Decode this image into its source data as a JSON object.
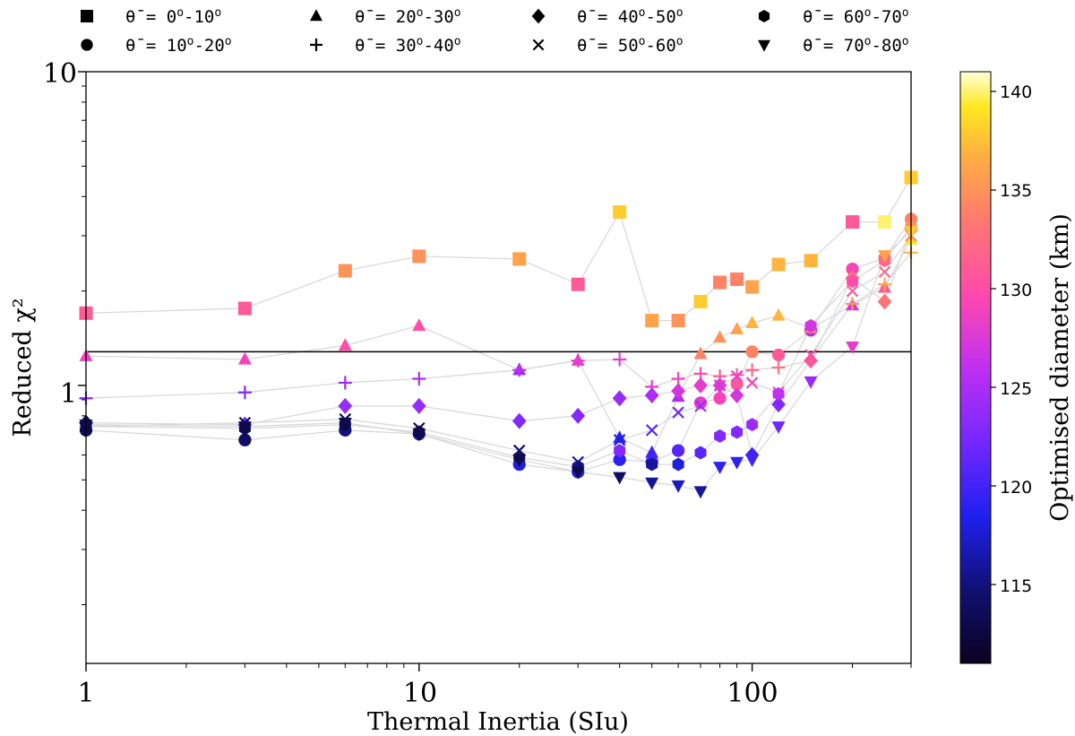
{
  "chart_data": {
    "type": "scatter",
    "title": "",
    "xlabel": "Thermal Inertia (SIu)",
    "ylabel": "Reduced χ²",
    "xscale": "log",
    "yscale": "log",
    "xlim": [
      1,
      300
    ],
    "ylim": [
      0.13,
      10
    ],
    "x_ticks": [
      {
        "value": 1,
        "label": "1"
      },
      {
        "value": 10,
        "label": "10"
      },
      {
        "value": 100,
        "label": "100"
      }
    ],
    "y_ticks": [
      {
        "value": 1,
        "label": "1"
      },
      {
        "value": 10,
        "label": "10"
      }
    ],
    "reference_line": {
      "y": 1.28,
      "color": "#000000"
    },
    "connector_color": "#d9d9d9",
    "legend_position": "top",
    "colorbar": {
      "label": "Optimised diameter (km)",
      "colormap": "plasma-like",
      "range": [
        111,
        141
      ],
      "ticks": [
        115,
        120,
        125,
        130,
        135,
        140
      ]
    },
    "series": [
      {
        "name": "θ̄ = 0ᵒ-10ᵒ",
        "theta_prefix": "θ̄ = 0",
        "theta_mid": "-10",
        "marker": "square",
        "x": [
          1,
          3,
          6,
          10,
          20,
          30,
          40,
          50,
          60,
          70,
          80,
          90,
          100,
          120,
          150,
          200,
          250,
          300
        ],
        "y": [
          1.7,
          1.76,
          2.32,
          2.58,
          2.53,
          2.1,
          3.57,
          1.61,
          1.61,
          1.85,
          2.13,
          2.18,
          2.06,
          2.43,
          2.5,
          3.32,
          3.32,
          4.6
        ],
        "diameter": [
          131,
          131,
          135,
          135,
          136,
          131,
          138,
          136,
          135,
          138,
          134,
          134,
          136,
          137,
          137,
          131,
          140,
          138
        ]
      },
      {
        "name": "θ̄ = 10ᵒ-20ᵒ",
        "theta_prefix": "θ̄ = 10",
        "theta_mid": "-20",
        "marker": "circle",
        "x": [
          1,
          3,
          6,
          10,
          20,
          30,
          40,
          50,
          60,
          70,
          80,
          90,
          100,
          120,
          150,
          200,
          250,
          300
        ],
        "y": [
          0.72,
          0.67,
          0.72,
          0.7,
          0.56,
          0.53,
          0.58,
          0.57,
          0.62,
          0.88,
          0.91,
          1.01,
          1.28,
          1.25,
          1.5,
          2.35,
          2.55,
          3.39
        ],
        "diameter": [
          114,
          114,
          115,
          116,
          118,
          118,
          119,
          120,
          121,
          128,
          129,
          131,
          134,
          131,
          125,
          129,
          133,
          134
        ]
      },
      {
        "name": "θ̄ = 20ᵒ-30ᵒ",
        "theta_prefix": "θ̄ = 20",
        "theta_mid": "-30",
        "marker": "triangle-up",
        "x": [
          1,
          3,
          6,
          10,
          20,
          30,
          40,
          50,
          60,
          70,
          80,
          90,
          100,
          120,
          150,
          200,
          250,
          300
        ],
        "y": [
          1.24,
          1.21,
          1.34,
          1.55,
          1.12,
          1.2,
          0.68,
          0.61,
          0.92,
          1.26,
          1.42,
          1.51,
          1.58,
          1.67,
          1.52,
          1.8,
          2.05,
          2.92
        ],
        "diameter": [
          129,
          129,
          130,
          130,
          124,
          128,
          119,
          120,
          125,
          134,
          135,
          136,
          137,
          137,
          133,
          127,
          131,
          139
        ]
      },
      {
        "name": "θ̄ = 30ᵒ-40ᵒ",
        "theta_prefix": "θ̄ = 30",
        "theta_mid": "-40",
        "marker": "plus",
        "x": [
          1,
          3,
          6,
          10,
          20,
          30,
          40,
          50,
          60,
          70,
          80,
          90,
          100,
          120,
          150,
          200,
          250,
          300
        ],
        "y": [
          0.91,
          0.95,
          1.02,
          1.05,
          1.12,
          1.2,
          1.21,
          0.99,
          1.05,
          1.09,
          1.07,
          1.08,
          1.12,
          1.14,
          1.2,
          1.82,
          2.1,
          2.65
        ],
        "diameter": [
          123,
          123,
          124,
          125,
          126,
          128,
          128,
          128,
          129,
          130,
          131,
          131,
          132,
          133,
          133,
          135,
          136,
          137
        ]
      },
      {
        "name": "θ̄ = 40ᵒ-50ᵒ",
        "theta_prefix": "θ̄ = 40",
        "theta_mid": "-50",
        "marker": "diamond",
        "x": [
          1,
          3,
          6,
          10,
          20,
          30,
          40,
          50,
          60,
          70,
          80,
          90,
          100,
          120,
          150,
          200,
          250,
          300
        ],
        "y": [
          0.76,
          0.75,
          0.86,
          0.86,
          0.77,
          0.8,
          0.91,
          0.93,
          0.96,
          1.0,
          1.0,
          0.93,
          0.6,
          0.87,
          1.2,
          2.2,
          1.85,
          3.15
        ],
        "diameter": [
          113,
          122,
          124,
          124,
          123,
          123,
          124,
          125,
          127,
          128,
          128,
          127,
          120,
          123,
          131,
          133,
          133,
          136
        ]
      },
      {
        "name": "θ̄ = 50ᵒ-60ᵒ",
        "theta_prefix": "θ̄ = 50",
        "theta_mid": "-60",
        "marker": "x",
        "x": [
          1,
          3,
          6,
          10,
          20,
          30,
          40,
          50,
          60,
          70,
          80,
          90,
          100,
          120,
          150,
          200,
          250,
          300
        ],
        "y": [
          0.74,
          0.76,
          0.78,
          0.73,
          0.62,
          0.57,
          0.67,
          0.72,
          0.82,
          0.86,
          1.0,
          1.07,
          1.02,
          0.95,
          1.25,
          2.0,
          2.3,
          3.0
        ],
        "diameter": [
          113,
          113,
          113,
          113,
          114,
          116,
          118,
          121,
          122,
          124,
          127,
          128,
          129,
          129,
          130,
          131,
          132,
          134
        ]
      },
      {
        "name": "θ̄ = 60ᵒ-70ᵒ",
        "theta_prefix": "θ̄ = 60",
        "theta_mid": "-70",
        "marker": "hexagon",
        "x": [
          1,
          3,
          6,
          10,
          20,
          30,
          40,
          50,
          60,
          70,
          80,
          90,
          100,
          120,
          150,
          200,
          250,
          300
        ],
        "y": [
          0.74,
          0.73,
          0.75,
          0.71,
          0.59,
          0.55,
          0.62,
          0.56,
          0.56,
          0.61,
          0.69,
          0.71,
          0.75,
          0.94,
          1.55,
          2.15,
          2.5,
          3.2
        ],
        "diameter": [
          113,
          113,
          113,
          113,
          114,
          115,
          123,
          116,
          118,
          121,
          123,
          123,
          124,
          126,
          127,
          130,
          132,
          135
        ]
      },
      {
        "name": "θ̄ = 70ᵒ-80ᵒ",
        "theta_prefix": "θ̄ = 70",
        "theta_mid": "-80",
        "marker": "triangle-down",
        "x": [
          1,
          3,
          6,
          10,
          20,
          30,
          40,
          50,
          60,
          70,
          80,
          90,
          100,
          120,
          150,
          200,
          250,
          300
        ],
        "y": [
          0.75,
          0.74,
          0.76,
          0.7,
          0.58,
          0.53,
          0.51,
          0.49,
          0.48,
          0.46,
          0.55,
          0.57,
          0.58,
          0.74,
          1.03,
          1.33,
          2.6,
          3.1
        ],
        "diameter": [
          113,
          113,
          113,
          113,
          113,
          113,
          114,
          116,
          117,
          116,
          119,
          119,
          120,
          122,
          124,
          128,
          136,
          138
        ]
      }
    ]
  }
}
